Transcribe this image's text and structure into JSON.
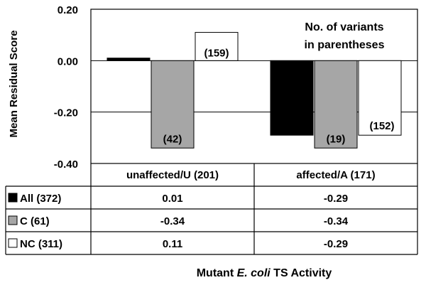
{
  "chart_data": {
    "type": "bar",
    "ylabel": "Mean Residual  Score",
    "xlabel_parts": [
      "Mutant ",
      "E. coli",
      " TS Activity"
    ],
    "ylim": [
      -0.4,
      0.2
    ],
    "yticks": [
      0.2,
      0.0,
      -0.2,
      -0.4
    ],
    "ytick_labels": [
      "0.20",
      "0.00",
      "-0.20",
      "-0.40"
    ],
    "categories": [
      "unaffected/U (201)",
      "affected/A (171)"
    ],
    "series": [
      {
        "name": "All (372)",
        "color": "#000000",
        "values": [
          0.01,
          -0.29
        ],
        "value_labels": [
          "0.01",
          "-0.29"
        ],
        "bar_labels": [
          "",
          ""
        ]
      },
      {
        "name": "C (61)",
        "color": "#a6a6a6",
        "values": [
          -0.34,
          -0.34
        ],
        "value_labels": [
          "-0.34",
          "-0.34"
        ],
        "bar_labels": [
          "(42)",
          "(19)"
        ]
      },
      {
        "name": "NC (311)",
        "color": "#ffffff",
        "values": [
          0.11,
          -0.29
        ],
        "value_labels": [
          "0.11",
          "-0.29"
        ],
        "bar_labels": [
          "(159)",
          "(152)"
        ]
      }
    ],
    "annotation": [
      "No. of variants",
      "in parentheses"
    ],
    "grid": true,
    "legend": "table below chart"
  }
}
